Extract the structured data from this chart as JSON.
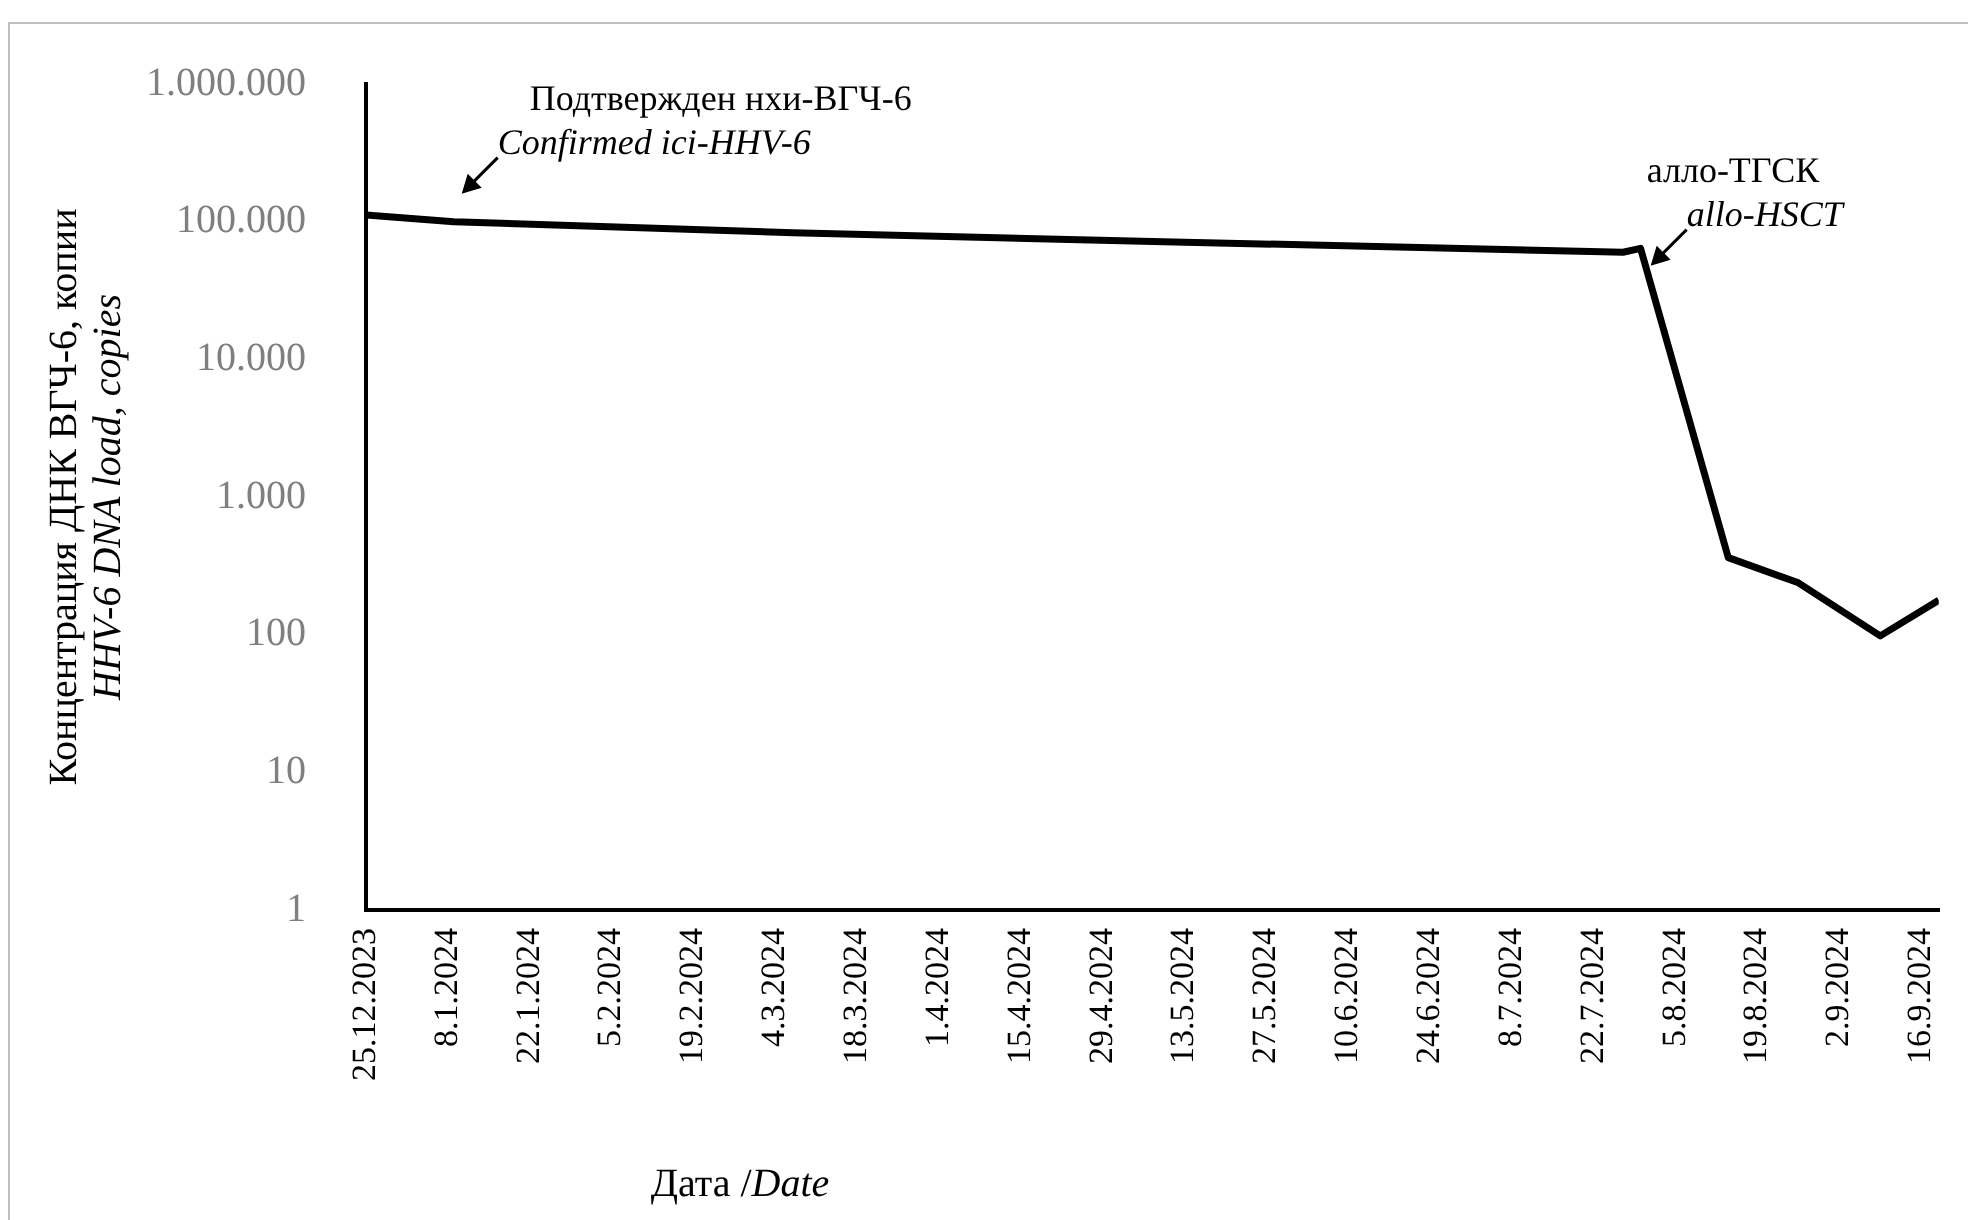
{
  "chart_data": {
    "type": "line",
    "xlabel": "Дата /Date",
    "ylabel": "Концентрация ДНК ВГЧ-6, копии\nHHV-6 DNA load, copies",
    "x": [
      "2023-12-25",
      "2024-01-09",
      "2024-03-07",
      "2024-05-13",
      "2024-07-27",
      "2024-07-30",
      "2024-08-14",
      "2024-08-26",
      "2024-09-09",
      "2024-09-19"
    ],
    "series": [
      {
        "color": "#000000",
        "values": [
          112000,
          100000,
          83000,
          71000,
          60000,
          64000,
          363,
          238,
          98,
          178
        ]
      }
    ],
    "log": true,
    "xlim": [
      "2023-12-25",
      "2024-09-19"
    ],
    "ylim": [
      1,
      1000000
    ],
    "xticks": [
      {
        "value": "2023-12-25",
        "label": "25.12.2023"
      },
      {
        "value": "2024-01-08",
        "label": "8.1.2024"
      },
      {
        "value": "2024-01-22",
        "label": "22.1.2024"
      },
      {
        "value": "2024-02-05",
        "label": "5.2.2024"
      },
      {
        "value": "2024-02-19",
        "label": "19.2.2024"
      },
      {
        "value": "2024-03-04",
        "label": "4.3.2024"
      },
      {
        "value": "2024-03-18",
        "label": "18.3.2024"
      },
      {
        "value": "2024-04-01",
        "label": "1.4.2024"
      },
      {
        "value": "2024-04-15",
        "label": "15.4.2024"
      },
      {
        "value": "2024-04-29",
        "label": "29.4.2024"
      },
      {
        "value": "2024-05-13",
        "label": "13.5.2024"
      },
      {
        "value": "2024-05-27",
        "label": "27.5.2024"
      },
      {
        "value": "2024-06-10",
        "label": "10.6.2024"
      },
      {
        "value": "2024-06-24",
        "label": "24.6.2024"
      },
      {
        "value": "2024-07-08",
        "label": "8.7.2024"
      },
      {
        "value": "2024-07-22",
        "label": "22.7.2024"
      },
      {
        "value": "2024-08-05",
        "label": "5.8.2024"
      },
      {
        "value": "2024-08-19",
        "label": "19.8.2024"
      },
      {
        "value": "2024-09-02",
        "label": "2.9.2024"
      },
      {
        "value": "2024-09-16",
        "label": "16.9.2024"
      }
    ],
    "yticks": [
      1,
      10,
      {
        "value": 100,
        "label": "100"
      },
      {
        "value": 1000,
        "label": "1.000"
      },
      {
        "value": 10000,
        "label": "10.000"
      },
      {
        "value": 100000,
        "label": "100.000"
      },
      {
        "value": 1000000,
        "label": "1.000.000"
      }
    ],
    "annotations": [
      {
        "text": "Подтвержден нхи-ВГЧ-6\nConfirmed ici-HHV-6",
        "x": "2024-01-09",
        "y": 100000
      },
      {
        "text": "алло-ТГСК\nallo-HSCT",
        "x": "2024-08-01",
        "y": 30000
      }
    ],
    "grid": false,
    "legend": false,
    "marker": "none",
    "line_style": "solid"
  }
}
